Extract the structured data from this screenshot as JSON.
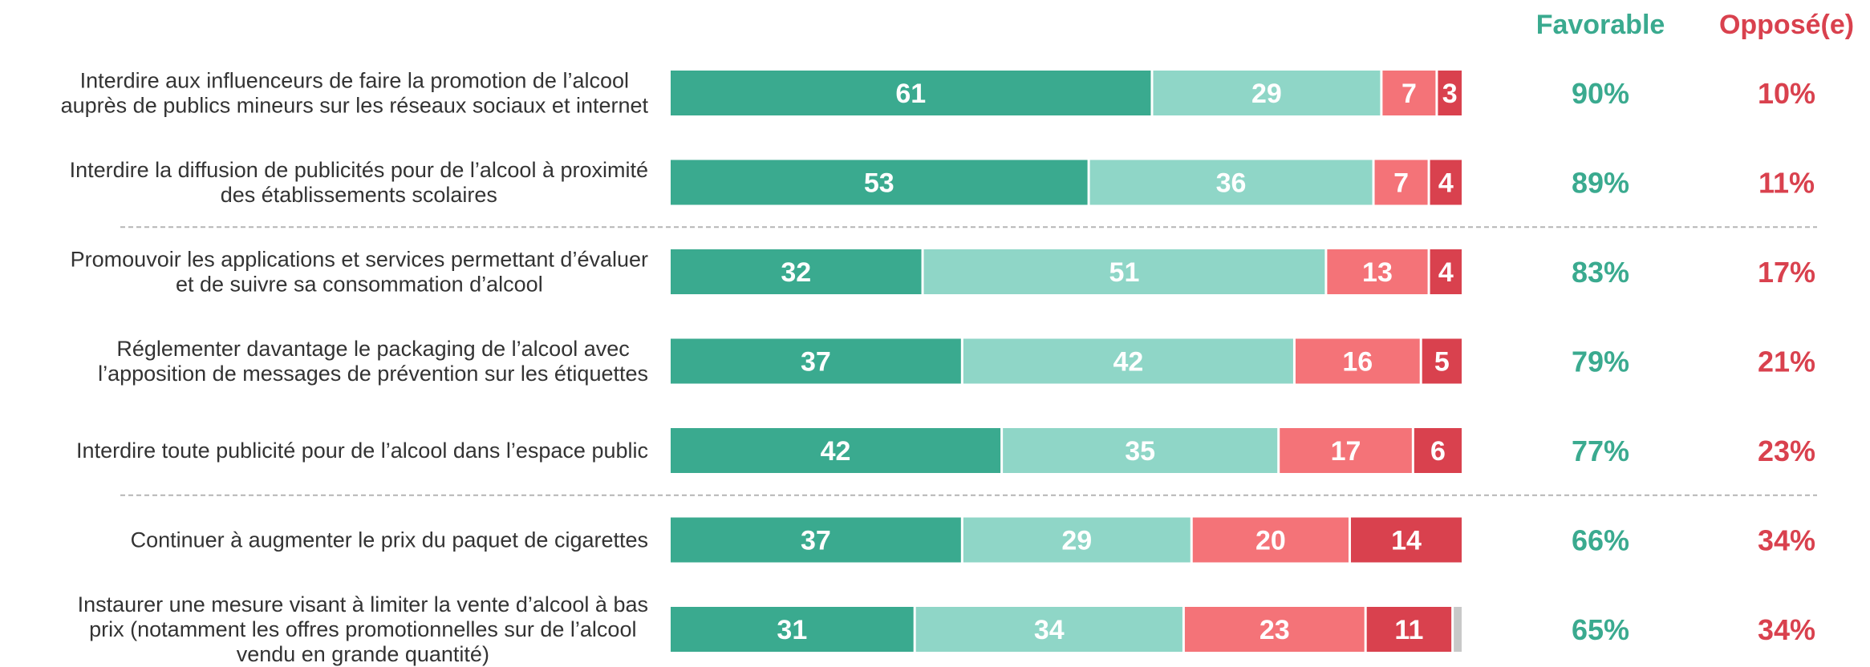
{
  "chart_data": {
    "type": "bar",
    "stacked": true,
    "orientation": "horizontal",
    "columns": {
      "favorable": {
        "label": "Favorable",
        "color": "#3aaa8f"
      },
      "oppose": {
        "label": "Opposé(e)",
        "color": "#d9414e"
      }
    },
    "segment_colors": [
      "#3aaa8f",
      "#8fd6c7",
      "#f47378",
      "#d9414e",
      "#c8c8c8"
    ],
    "separators_after": [
      1,
      4
    ],
    "rows": [
      {
        "label": [
          "Interdire aux influenceurs de faire la promotion de l’alcool",
          "auprès de publics mineurs sur les réseaux sociaux et internet"
        ],
        "values": [
          61,
          29,
          7,
          3,
          0
        ],
        "favorable": "90%",
        "oppose": "10%"
      },
      {
        "label": [
          "Interdire la diffusion de publicités pour de l’alcool à proximité",
          "des établissements scolaires"
        ],
        "values": [
          53,
          36,
          7,
          4,
          0
        ],
        "favorable": "89%",
        "oppose": "11%"
      },
      {
        "label": [
          "Promouvoir les applications et services permettant d’évaluer",
          "et de suivre sa consommation d’alcool"
        ],
        "values": [
          32,
          51,
          13,
          4,
          0
        ],
        "favorable": "83%",
        "oppose": "17%"
      },
      {
        "label": [
          "Réglementer davantage le packaging de l’alcool avec",
          "l’apposition de messages de prévention sur les étiquettes"
        ],
        "values": [
          37,
          42,
          16,
          5,
          0
        ],
        "favorable": "79%",
        "oppose": "21%"
      },
      {
        "label": [
          "Interdire toute publicité pour de l’alcool dans l’espace public"
        ],
        "values": [
          42,
          35,
          17,
          6,
          0
        ],
        "favorable": "77%",
        "oppose": "23%"
      },
      {
        "label": [
          "Continuer à augmenter le prix du paquet de cigarettes"
        ],
        "values": [
          37,
          29,
          20,
          14,
          0
        ],
        "favorable": "66%",
        "oppose": "34%"
      },
      {
        "label": [
          "Instaurer une mesure visant à limiter la vente d’alcool à bas",
          "prix (notamment les offres promotionnelles sur de l’alcool",
          "vendu en grande quantité)"
        ],
        "values": [
          31,
          34,
          23,
          11,
          1
        ],
        "favorable": "65%",
        "oppose": "34%"
      }
    ]
  }
}
